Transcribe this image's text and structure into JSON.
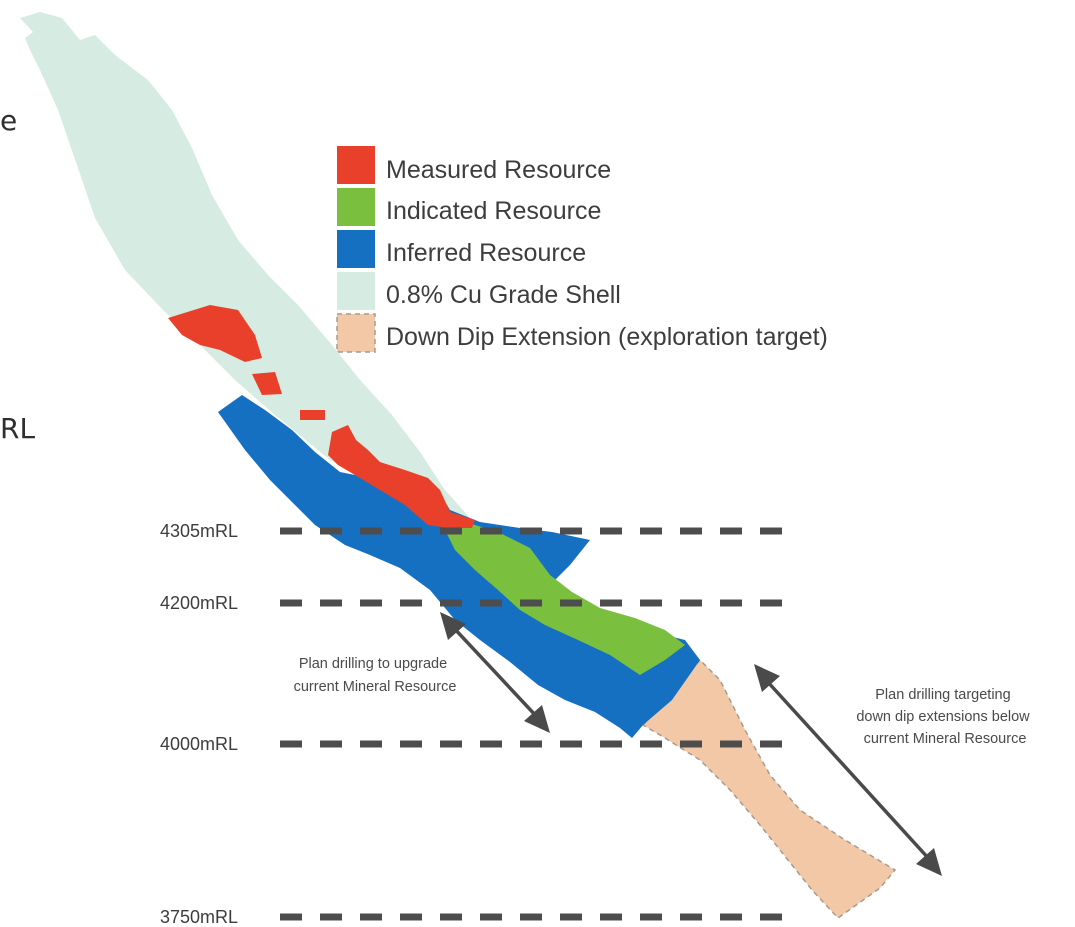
{
  "legend": {
    "items": [
      {
        "label": "Measured Resource",
        "color": "#e8402a"
      },
      {
        "label": "Indicated Resource",
        "color": "#7bbf3f"
      },
      {
        "label": "Inferred Resource",
        "color": "#1570c2"
      },
      {
        "label": "0.8% Cu Grade Shell",
        "color": "#d6ebe1"
      },
      {
        "label": "Down Dip Extension (exploration target)",
        "color": "#f2c8a6"
      }
    ]
  },
  "levels": [
    "4305mRL",
    "4200mRL",
    "4000mRL",
    "3750mRL"
  ],
  "annotations": {
    "upgrade": [
      "Plan drilling to upgrade",
      "current Mineral Resource"
    ],
    "extension": [
      "Plan drilling targeting",
      "down dip extensions below",
      "current Mineral Resource"
    ]
  },
  "cropped_text": {
    "left_top": "e",
    "left_mid": "RL"
  }
}
